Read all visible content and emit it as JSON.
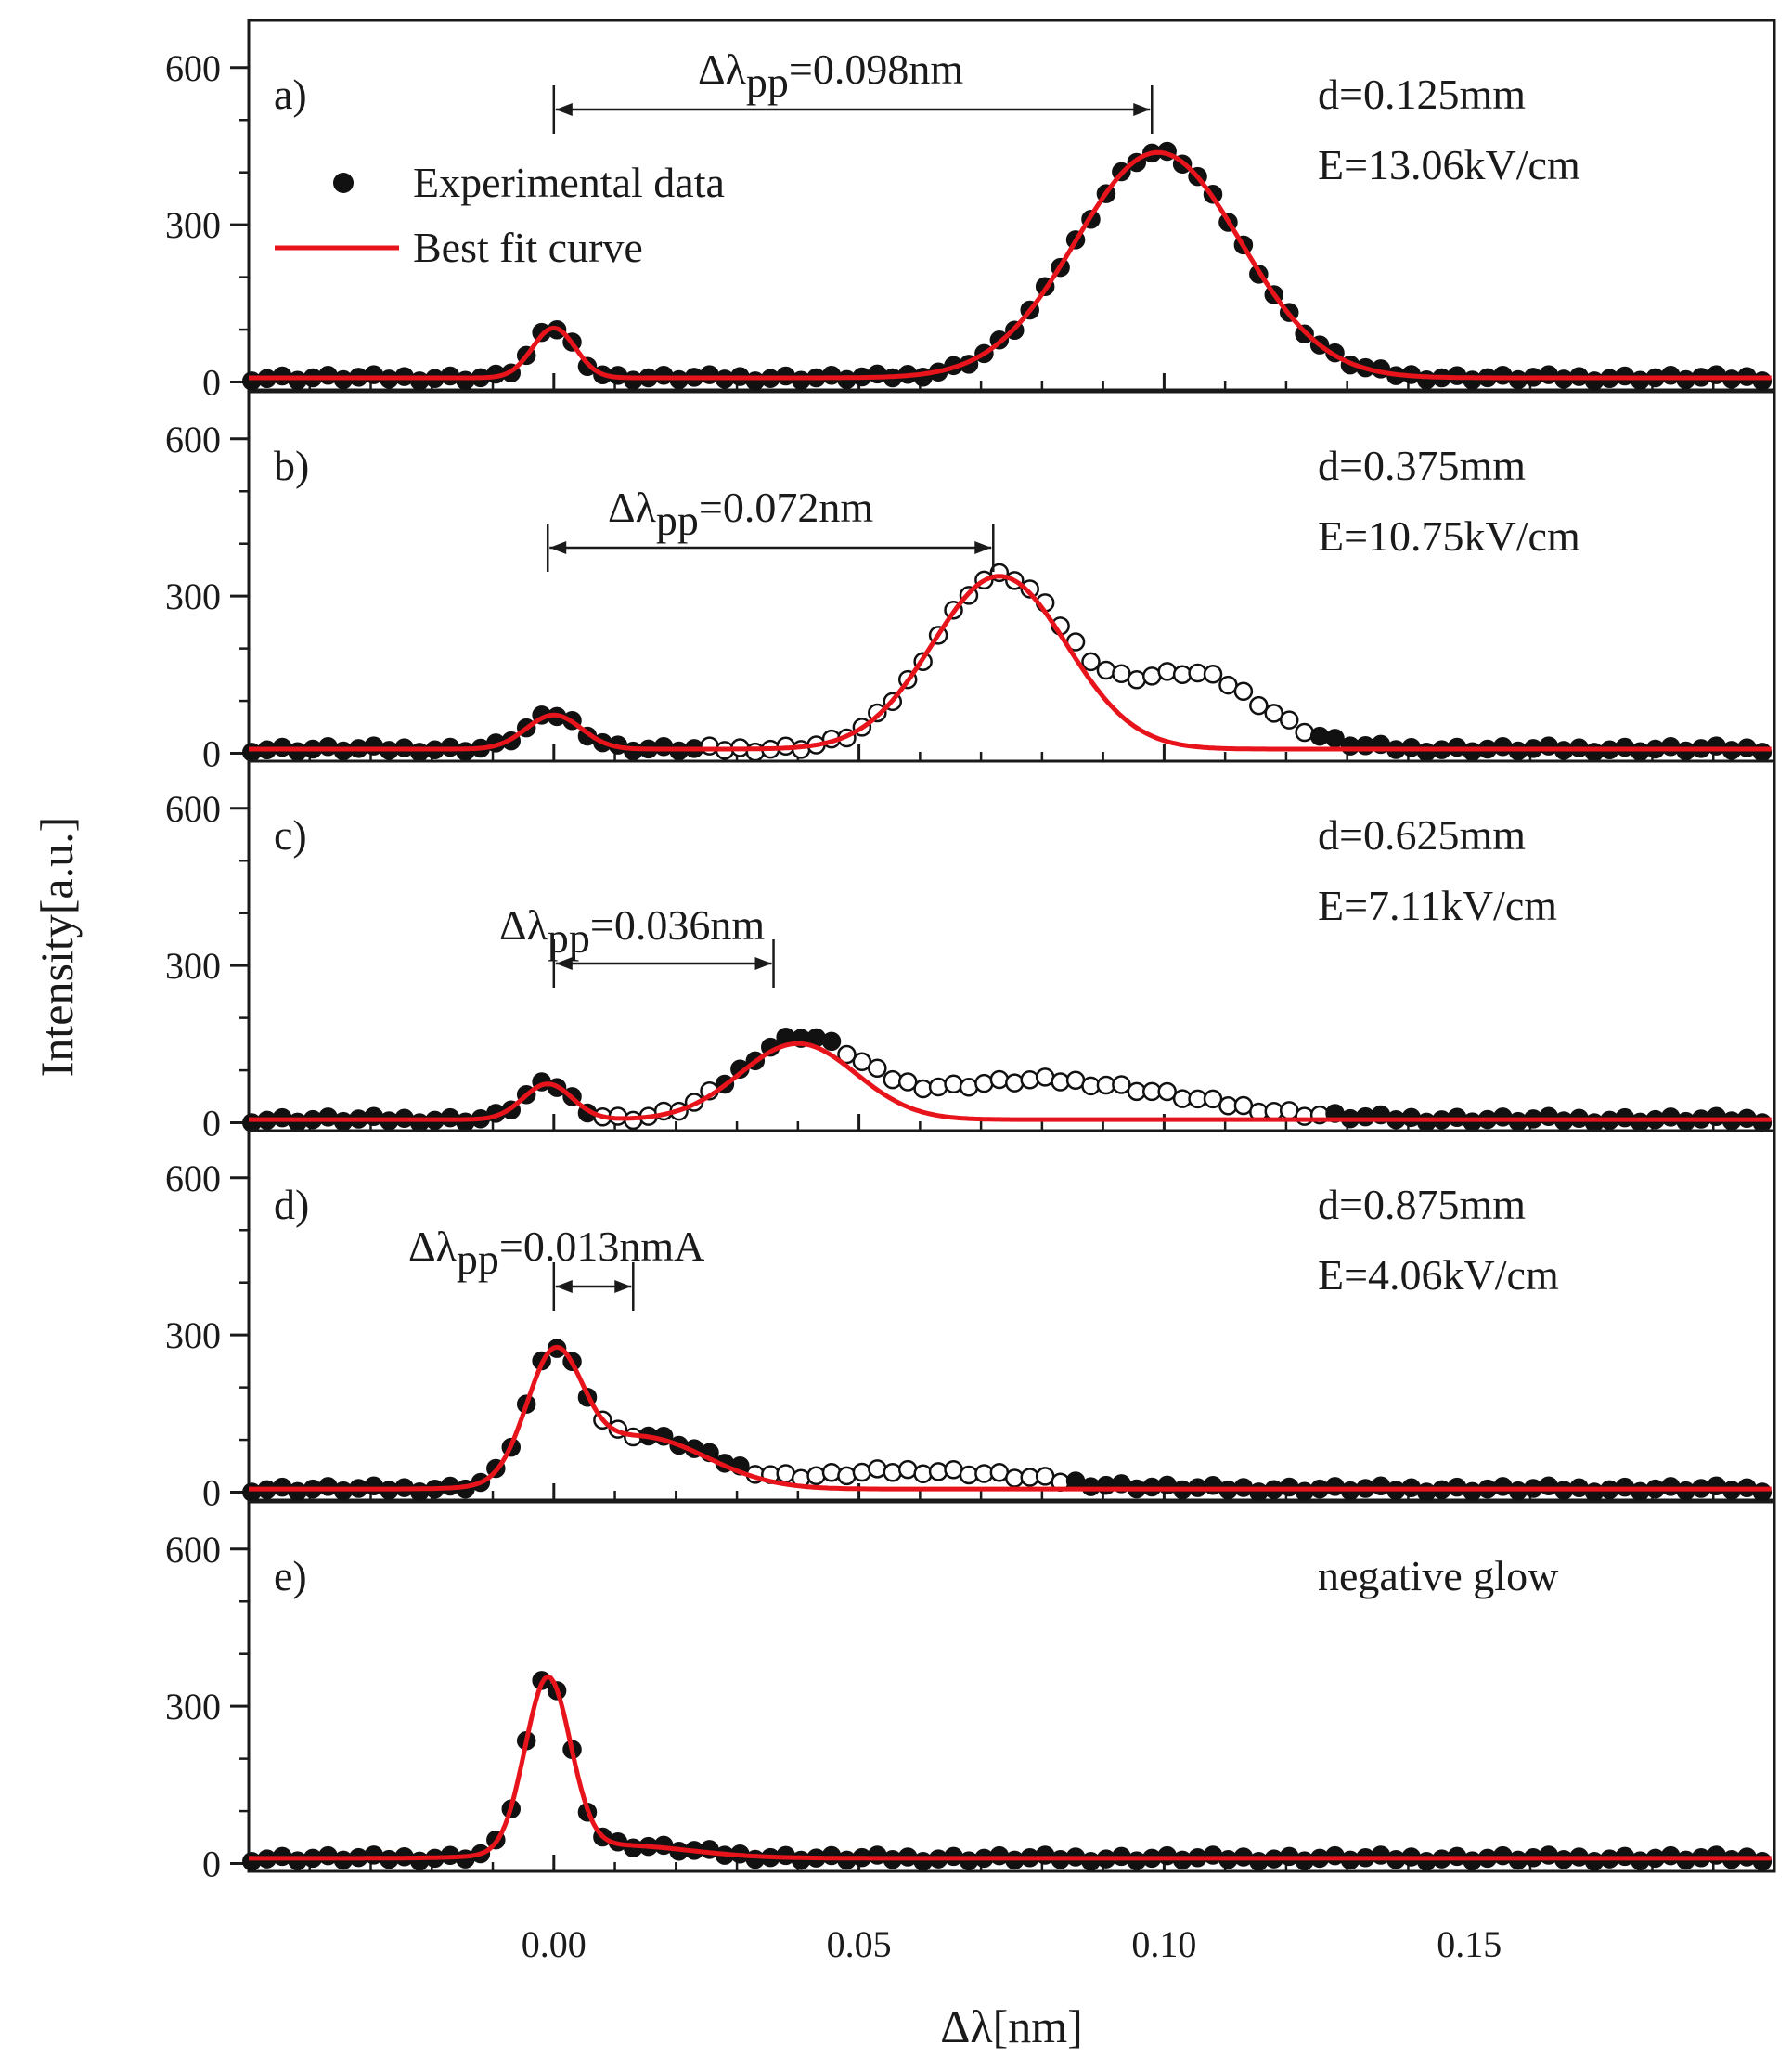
{
  "chart_data": [
    {
      "type": "scatter",
      "panel": "a)",
      "text_lines": [
        "d=0.125mm",
        "E=13.06kV/cm"
      ],
      "shift_label": {
        "prefix": "Δλ",
        "sub": "pp",
        "value": "=0.098nm",
        "from": 0.0,
        "to": 0.098
      },
      "legend": {
        "items": [
          "Experimental data",
          "Best fit curve"
        ],
        "placement": "top-left"
      },
      "peaks": [
        {
          "center": 0.0,
          "amp": 95,
          "sigma": 0.0035
        },
        {
          "center": 0.099,
          "amp": 430,
          "sigma": 0.0135
        }
      ],
      "baseline": 8,
      "open_ranges": []
    },
    {
      "type": "scatter",
      "panel": "b)",
      "text_lines": [
        "d=0.375mm",
        "E=10.75kV/cm"
      ],
      "shift_label": {
        "prefix": "Δλ",
        "sub": "pp",
        "value": "=0.072nm",
        "from": -0.001,
        "to": 0.072
      },
      "peaks": [
        {
          "center": 0.0,
          "amp": 65,
          "sigma": 0.0045
        },
        {
          "center": 0.073,
          "amp": 330,
          "sigma": 0.011
        }
      ],
      "tail": {
        "center": 0.105,
        "amp": 140,
        "sigma": 0.011
      },
      "baseline": 8,
      "open_ranges": [
        [
          0.025,
          0.125
        ]
      ]
    },
    {
      "type": "scatter",
      "panel": "c)",
      "text_lines": [
        "d=0.625mm",
        "E=7.11kV/cm"
      ],
      "shift_label": {
        "prefix": "Δλ",
        "sub": "pp",
        "value": "=0.036nm",
        "from": 0.0,
        "to": 0.036
      },
      "peaks": [
        {
          "center": -0.001,
          "amp": 68,
          "sigma": 0.004
        },
        {
          "center": 0.04,
          "amp": 145,
          "sigma": 0.0095
        }
      ],
      "tail": {
        "center": 0.08,
        "amp": 75,
        "sigma": 0.022
      },
      "baseline": 6,
      "open_ranges": [
        [
          0.008,
          0.028
        ],
        [
          0.046,
          0.126
        ]
      ]
    },
    {
      "type": "scatter",
      "panel": "d)",
      "text_lines": [
        "d=0.875mm",
        "E=4.06kV/cm"
      ],
      "shift_label": {
        "prefix": "Δλ",
        "sub": "pp",
        "value": "=0.013nmA",
        "from": 0.0,
        "to": 0.013
      },
      "peaks": [
        {
          "center": 0.0,
          "amp": 225,
          "sigma": 0.0045
        },
        {
          "center": 0.014,
          "amp": 100,
          "sigma": 0.011
        }
      ],
      "tail": {
        "center": 0.06,
        "amp": 35,
        "sigma": 0.018
      },
      "baseline": 6,
      "open_ranges": [
        [
          0.006,
          0.015
        ],
        [
          0.033,
          0.085
        ]
      ]
    },
    {
      "type": "scatter",
      "panel": "e)",
      "text_lines": [
        "negative glow"
      ],
      "peaks": [
        {
          "center": -0.001,
          "amp": 330,
          "sigma": 0.0037
        },
        {
          "center": 0.01,
          "amp": 25,
          "sigma": 0.012
        }
      ],
      "baseline": 10,
      "open_ranges": []
    }
  ],
  "axes": {
    "xlabel": "Δλ[nm]",
    "ylabel": "Intensity[a.u.]",
    "xlim": [
      -0.05,
      0.2
    ],
    "ylim": [
      -15,
      690
    ],
    "xticks": [
      0.0,
      0.05,
      0.1,
      0.15
    ],
    "xtick_labels": [
      "0.00",
      "0.05",
      "0.10",
      "0.15"
    ],
    "yticks": [
      0,
      300,
      600
    ],
    "ytick_labels": [
      "0",
      "300",
      "600"
    ]
  },
  "colors": {
    "fit": "#e8141c",
    "marker": "#111111",
    "open_fill": "#ffffff",
    "axis": "#1a1a1a"
  }
}
